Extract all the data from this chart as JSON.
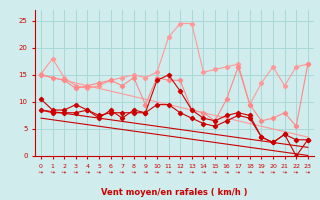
{
  "xlabel": "Vent moyen/en rafales ( km/h )",
  "x": [
    0,
    1,
    2,
    3,
    4,
    5,
    6,
    7,
    8,
    9,
    10,
    11,
    12,
    13,
    14,
    15,
    16,
    17,
    18,
    19,
    20,
    21,
    22,
    23
  ],
  "line1": [
    15.2,
    18.0,
    14.5,
    13.0,
    12.5,
    13.0,
    14.0,
    14.5,
    15.0,
    14.5,
    15.5,
    22.0,
    24.5,
    24.5,
    15.5,
    16.0,
    16.5,
    17.0,
    9.5,
    13.5,
    16.5,
    13.0,
    16.5,
    17.0
  ],
  "line2": [
    15.0,
    14.5,
    14.0,
    12.5,
    13.0,
    13.5,
    14.0,
    13.0,
    14.5,
    9.5,
    14.5,
    14.0,
    14.0,
    8.5,
    8.0,
    6.5,
    10.5,
    16.5,
    9.5,
    6.5,
    7.0,
    8.0,
    5.5,
    17.0
  ],
  "line3": [
    10.5,
    8.5,
    8.5,
    9.5,
    8.5,
    7.0,
    8.5,
    7.0,
    8.5,
    8.0,
    14.0,
    15.0,
    12.0,
    8.5,
    7.0,
    6.5,
    7.5,
    8.0,
    7.5,
    3.5,
    2.5,
    4.0,
    0.0,
    3.0
  ],
  "line4": [
    8.5,
    8.0,
    8.0,
    8.0,
    8.5,
    7.5,
    8.0,
    8.0,
    8.0,
    8.0,
    9.5,
    9.5,
    8.0,
    7.0,
    6.0,
    5.5,
    6.5,
    7.5,
    7.0,
    3.5,
    2.5,
    4.0,
    3.0,
    3.0
  ],
  "trend1": [
    15.0,
    14.5,
    14.0,
    13.5,
    13.0,
    12.5,
    12.0,
    11.5,
    11.0,
    10.5,
    10.0,
    9.5,
    9.0,
    8.5,
    8.0,
    7.5,
    7.0,
    6.5,
    6.0,
    5.5,
    5.0,
    4.5,
    4.0,
    3.5
  ],
  "trend2": [
    8.5,
    8.2,
    7.9,
    7.6,
    7.3,
    7.0,
    6.7,
    6.4,
    6.1,
    5.8,
    5.5,
    5.2,
    4.9,
    4.6,
    4.3,
    4.0,
    3.7,
    3.4,
    3.1,
    2.8,
    2.5,
    2.2,
    1.9,
    1.6
  ],
  "trend3": [
    7.0,
    6.7,
    6.4,
    6.1,
    5.8,
    5.5,
    5.2,
    4.9,
    4.6,
    4.3,
    4.0,
    3.7,
    3.4,
    3.1,
    2.8,
    2.5,
    2.2,
    1.9,
    1.6,
    1.3,
    1.0,
    0.7,
    0.4,
    0.1
  ],
  "color_lpink": "#FF9999",
  "color_mpink": "#FF8888",
  "color_dred": "#CC0000",
  "color_bg": "#D0ECEC",
  "color_grid": "#A8D8D8",
  "ylim": [
    0,
    27
  ],
  "yticks": [
    0,
    5,
    10,
    15,
    20,
    25
  ]
}
